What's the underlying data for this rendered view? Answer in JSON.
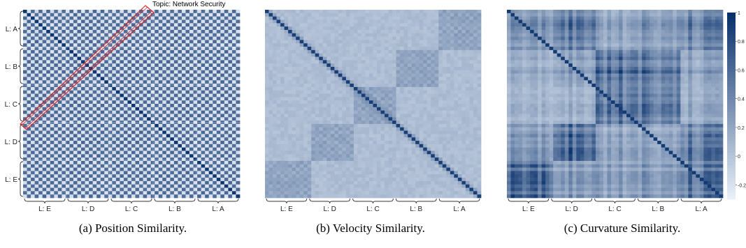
{
  "chart_data": [
    {
      "type": "heatmap",
      "caption": "(a) Position Similarity.",
      "groups": [
        "L: E",
        "L: D",
        "L: C",
        "L: B",
        "L: A"
      ],
      "x_tick_labels": [
        "L: E",
        "L: D",
        "L: C",
        "L: B",
        "L: A"
      ],
      "y_tick_labels": [
        "L: A",
        "L: B",
        "L: C",
        "L: D",
        "L: E"
      ],
      "pattern": "checkerboard",
      "annotation": "Topic: Network Security",
      "annotation_color": "#d62728"
    },
    {
      "type": "heatmap",
      "caption": "(b) Velocity Similarity.",
      "groups": [
        "L: E",
        "L: D",
        "L: C",
        "L: B",
        "L: A"
      ],
      "x_tick_labels": [
        "L: E",
        "L: D",
        "L: C",
        "L: B",
        "L: A"
      ],
      "pattern": "diagonal"
    },
    {
      "type": "heatmap",
      "caption": "(c) Curvature Similarity.",
      "groups": [
        "L: E",
        "L: D",
        "L: C",
        "L: B",
        "L: A"
      ],
      "x_tick_labels": [
        "L: E",
        "L: D",
        "L: C",
        "L: B",
        "L: A"
      ],
      "pattern": "blocks",
      "colorbar": {
        "min": -0.3,
        "max": 1,
        "ticks": [
          -0.2,
          0,
          0.2,
          0.4,
          0.6,
          0.8,
          1
        ],
        "tick_labels": [
          "-0.2",
          "0",
          "0.2",
          "0.4",
          "0.6",
          "0.8",
          "1"
        ],
        "color_low": "#e8eff8",
        "color_high": "#08306b"
      }
    }
  ]
}
